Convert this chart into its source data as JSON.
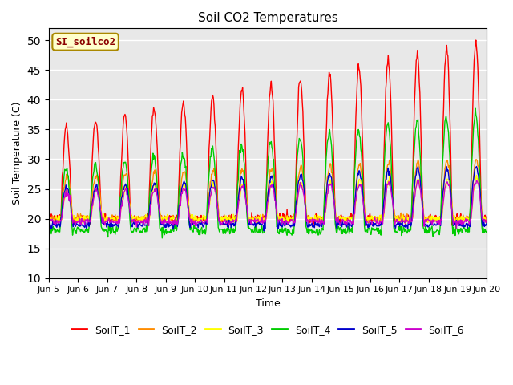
{
  "title": "Soil CO2 Temperatures",
  "xlabel": "Time",
  "ylabel": "Soil Temperature (C)",
  "ylim": [
    10,
    52
  ],
  "yticks": [
    10,
    15,
    20,
    25,
    30,
    35,
    40,
    45,
    50
  ],
  "bg_color": "#e8e8e8",
  "fig_color": "#ffffff",
  "annotation_text": "SI_soilco2",
  "annotation_color": "#8b0000",
  "annotation_bg": "#ffffcc",
  "annotation_edge": "#aa8800",
  "legend_labels": [
    "SoilT_1",
    "SoilT_2",
    "SoilT_3",
    "SoilT_4",
    "SoilT_5",
    "SoilT_6"
  ],
  "line_colors": [
    "#ff0000",
    "#ff8c00",
    "#ffff00",
    "#00cc00",
    "#0000cc",
    "#cc00cc"
  ],
  "xtick_labels": [
    "Jun 5",
    "Jun 6",
    "Jun 7",
    "Jun 8",
    "Jun 9",
    "Jun 10",
    "Jun 11",
    "Jun 12",
    "Jun 13",
    "Jun 14",
    "Jun 15",
    "Jun 16",
    "Jun 17",
    "Jun 18",
    "Jun 19",
    "Jun 20"
  ],
  "num_days": 15,
  "points_per_day": 48,
  "grid_color": "#ffffff",
  "linewidth": 1.0,
  "title_fontsize": 11,
  "label_fontsize": 9,
  "tick_fontsize": 8,
  "legend_fontsize": 9
}
